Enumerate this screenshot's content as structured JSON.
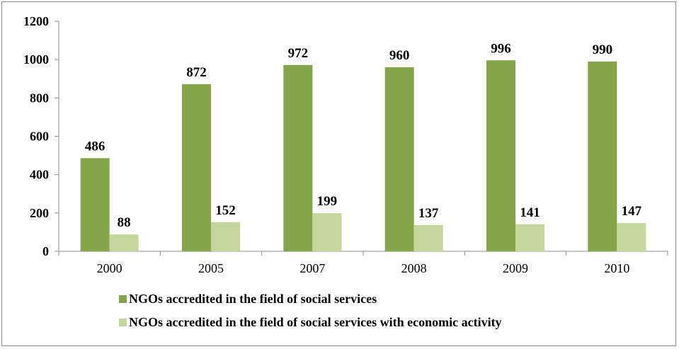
{
  "chart_data": {
    "type": "bar",
    "categories": [
      "2000",
      "2005",
      "2007",
      "2008",
      "2009",
      "2010"
    ],
    "series": [
      {
        "name": "NGOs accredited in the field of social services",
        "values": [
          486,
          872,
          972,
          960,
          996,
          990
        ],
        "color": "#86a44a"
      },
      {
        "name": "NGOs accredited in the field of social services with economic activity",
        "values": [
          88,
          152,
          199,
          137,
          141,
          147
        ],
        "color": "#c3d69b"
      }
    ],
    "ylim": [
      0,
      1200
    ],
    "yticks": [
      0,
      200,
      400,
      600,
      800,
      1000,
      1200
    ],
    "grid": false,
    "legend": "bottom",
    "data_labels": true
  }
}
